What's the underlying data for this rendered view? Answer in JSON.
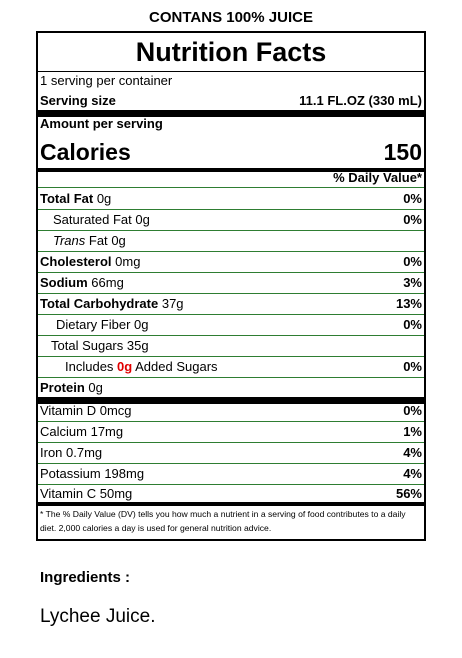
{
  "header": "CONTANS 100% JUICE",
  "label": {
    "title": "Nutrition Facts",
    "servings_per_container": "1 serving per container",
    "serving_size_label": "Serving size",
    "serving_size_value": "11.1 FL.OZ (330 mL)",
    "amount_per_serving": "Amount per serving",
    "calories_label": "Calories",
    "calories_value": "150",
    "dv_header": "% Daily Value*",
    "nutrients": {
      "total_fat": {
        "name": "Total Fat",
        "amount": "0g",
        "dv": "0%"
      },
      "saturated_fat": {
        "name": "Saturated Fat",
        "amount": "0g",
        "dv": "0%"
      },
      "trans_fat": {
        "name_italic": "Trans",
        "name": "Fat",
        "amount": "0g"
      },
      "cholesterol": {
        "name": "Cholesterol",
        "amount": "0mg",
        "dv": "0%"
      },
      "sodium": {
        "name": "Sodium",
        "amount": "66mg",
        "dv": "3%"
      },
      "total_carbohydrate": {
        "name": "Total Carbohydrate",
        "amount": "37g",
        "dv": "13%"
      },
      "dietary_fiber": {
        "name": "Dietary Fiber",
        "amount": "0g",
        "dv": "0%"
      },
      "total_sugars": {
        "name": "Total Sugars",
        "amount": "35g"
      },
      "added_sugars": {
        "prefix": "Includes",
        "amount": "0g",
        "suffix": "Added Sugars",
        "dv": "0%"
      },
      "protein": {
        "name": "Protein",
        "amount": "0g"
      }
    },
    "vitamins": [
      {
        "name": "Vitamin D",
        "amount": "0mcg",
        "dv": "0%"
      },
      {
        "name": "Calcium",
        "amount": "17mg",
        "dv": "1%"
      },
      {
        "name": "Iron",
        "amount": "0.7mg",
        "dv": "4%"
      },
      {
        "name": "Potassium",
        "amount": "198mg",
        "dv": "4%"
      },
      {
        "name": "Vitamin C",
        "amount": "50mg",
        "dv": "56%"
      }
    ],
    "footnote": "* The % Daily Value (DV) tells you how much a nutrient in a serving of food contributes to a daily diet. 2,000 calories a day is used for general nutrition advice."
  },
  "ingredients": {
    "label": "Ingredients :",
    "value": "Lychee Juice."
  },
  "colors": {
    "divider_green": "#2e7d32",
    "added_sugar_highlight": "#e00000"
  }
}
